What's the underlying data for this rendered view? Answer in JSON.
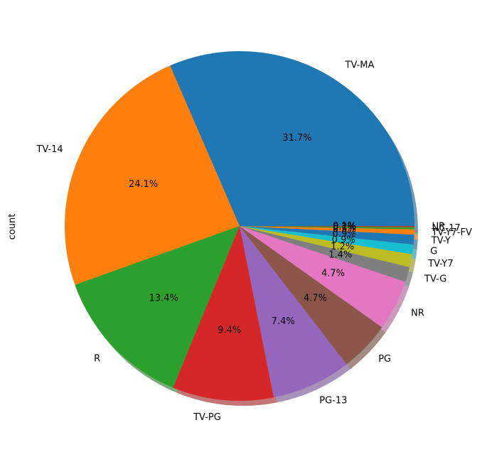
{
  "chart_data": {
    "type": "pie",
    "ylabel": "count",
    "shadow": true,
    "start_angle_deg": 0,
    "direction": "counterclockwise",
    "slices": [
      {
        "label": "TV-MA",
        "value": 31.7,
        "pct_label": "31.7%",
        "color": "#1f77b4"
      },
      {
        "label": "TV-14",
        "value": 24.1,
        "pct_label": "24.1%",
        "color": "#ff7f0e"
      },
      {
        "label": "R",
        "value": 13.4,
        "pct_label": "13.4%",
        "color": "#2ca02c"
      },
      {
        "label": "TV-PG",
        "value": 9.4,
        "pct_label": "9.4%",
        "color": "#d62728"
      },
      {
        "label": "PG-13",
        "value": 7.4,
        "pct_label": "7.4%",
        "color": "#9467bd"
      },
      {
        "label": "PG",
        "value": 4.7,
        "pct_label": "4.7%",
        "color": "#8c564b"
      },
      {
        "label": "NR",
        "value": 4.7,
        "pct_label": "4.7%",
        "color": "#e377c2"
      },
      {
        "label": "TV-G",
        "value": 1.4,
        "pct_label": "1.4%",
        "color": "#7f7f7f"
      },
      {
        "label": "TV-Y7",
        "value": 1.2,
        "pct_label": "1.2%",
        "color": "#bcbd22"
      },
      {
        "label": "G",
        "value": 0.9,
        "pct_label": "0.9%",
        "color": "#17becf"
      },
      {
        "label": "TV-Y",
        "value": 0.9,
        "pct_label": "0.9%",
        "color": "#1f77b4"
      },
      {
        "label": "TV-Y7-FV",
        "value": 0.5,
        "pct_label": "0.5%",
        "color": "#ff7f0e"
      },
      {
        "label": "NC-17",
        "value": 0.2,
        "pct_label": "0.2%",
        "color": "#2ca02c"
      },
      {
        "label": "UR",
        "value": 0.1,
        "pct_label": "0.1%",
        "color": "#d62728"
      }
    ]
  }
}
